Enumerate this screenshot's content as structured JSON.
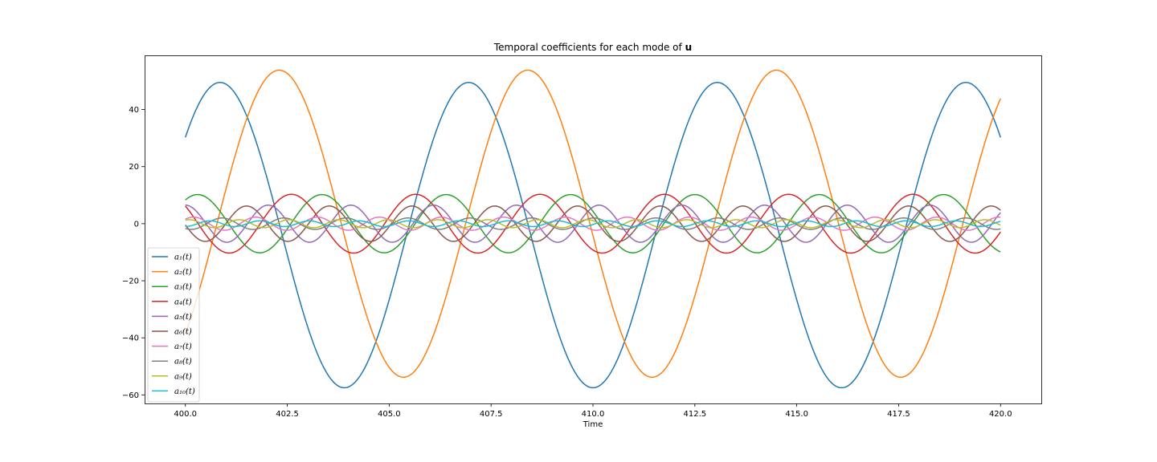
{
  "chart_data": {
    "type": "line",
    "title": "Temporal coefficients for each mode of",
    "title_symbol": "u",
    "xlabel": "Time",
    "ylabel": "",
    "xlim": [
      399.0,
      421.0
    ],
    "ylim": [
      -63.0,
      59.0
    ],
    "xticks": [
      400.0,
      402.5,
      405.0,
      407.5,
      410.0,
      412.5,
      415.0,
      417.5,
      420.0
    ],
    "xtick_labels": [
      "400.0",
      "402.5",
      "405.0",
      "407.5",
      "410.0",
      "412.5",
      "415.0",
      "417.5",
      "420.0"
    ],
    "yticks": [
      -60,
      -40,
      -20,
      0,
      20,
      40
    ],
    "ytick_labels": [
      "−60",
      "−40",
      "−20",
      "0",
      "20",
      "40"
    ],
    "grid": false,
    "legend_position": "lower-left",
    "x_range": [
      400.0,
      420.0
    ],
    "series": [
      {
        "name": "a₁(t)",
        "color": "#1f77b4",
        "amp": 53.5,
        "offset": -4.0,
        "period": 6.1,
        "peak_t": 400.85
      },
      {
        "name": "a₂(t)",
        "color": "#ff7f0e",
        "amp": 53.8,
        "offset": 0.0,
        "period": 6.1,
        "peak_t": 402.3
      },
      {
        "name": "a₃(t)",
        "color": "#2ca02c",
        "amp": 10.2,
        "offset": 0.0,
        "period": 3.05,
        "peak_t": 400.3
      },
      {
        "name": "a₄(t)",
        "color": "#d62728",
        "amp": 10.3,
        "offset": 0.0,
        "period": 3.05,
        "peak_t": 402.6
      },
      {
        "name": "a₅(t)",
        "color": "#9467bd",
        "amp": 6.5,
        "offset": 0.0,
        "period": 2.03,
        "peak_t": 400.0
      },
      {
        "name": "a₆(t)",
        "color": "#8c564b",
        "amp": 6.2,
        "offset": 0.0,
        "period": 2.03,
        "peak_t": 401.5
      },
      {
        "name": "a₇(t)",
        "color": "#e377c2",
        "amp": 2.3,
        "offset": 0.0,
        "period": 1.52,
        "peak_t": 400.2
      },
      {
        "name": "a₈(t)",
        "color": "#7f7f7f",
        "amp": 2.0,
        "offset": 0.0,
        "period": 1.52,
        "peak_t": 400.9
      },
      {
        "name": "a₉(t)",
        "color": "#bcbd22",
        "amp": 1.4,
        "offset": 0.0,
        "period": 1.22,
        "peak_t": 400.1
      },
      {
        "name": "a₁₀(t)",
        "color": "#17becf",
        "amp": 1.0,
        "offset": 0.0,
        "period": 1.22,
        "peak_t": 400.6
      }
    ]
  }
}
